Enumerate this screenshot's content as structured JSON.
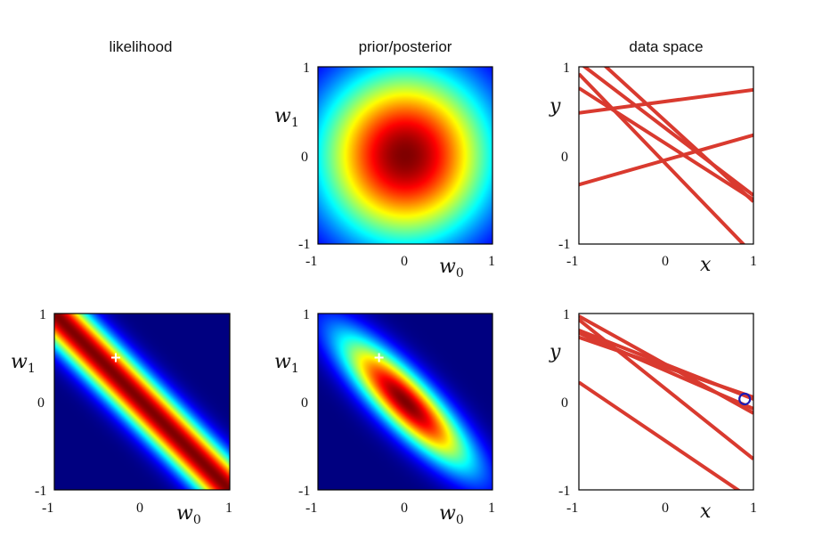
{
  "figure": {
    "col_titles": [
      "likelihood",
      "prior/posterior",
      "data space"
    ]
  },
  "chart_data": [
    {
      "id": "prior",
      "type": "heatmap",
      "title": "prior/posterior",
      "xlabel": "w_0",
      "ylabel": "w_1",
      "xlim": [
        -1,
        1
      ],
      "ylim": [
        -1,
        1
      ],
      "xticks": [
        "-1",
        "0",
        "1"
      ],
      "yticks": [
        "-1",
        "0",
        "1"
      ],
      "density": {
        "kind": "gaussian",
        "mean": [
          0,
          0
        ],
        "cov": [
          [
            0.5,
            0
          ],
          [
            0,
            0.5
          ]
        ]
      },
      "colormap": "jet"
    },
    {
      "id": "data1",
      "type": "line",
      "title": "data space",
      "xlabel": "x",
      "ylabel": "y",
      "xlim": [
        -1,
        1
      ],
      "ylim": [
        -1,
        1
      ],
      "xticks": [
        "-1",
        "0",
        "1"
      ],
      "yticks": [
        "-1",
        "0",
        "1"
      ],
      "line_color": "#d93a2f",
      "lines": [
        {
          "w0": 0.3,
          "w1": -0.75
        },
        {
          "w0": 0.61,
          "w1": 0.13
        },
        {
          "w0": -0.1,
          "w1": -1.02
        },
        {
          "w0": 0.38,
          "w1": -0.9
        },
        {
          "w0": -0.05,
          "w1": 0.28
        },
        {
          "w0": 0.13,
          "w1": -0.63
        }
      ]
    },
    {
      "id": "likelihood",
      "type": "heatmap",
      "title": "likelihood",
      "xlabel": "w_0",
      "ylabel": "w_1",
      "xlim": [
        -1,
        1
      ],
      "ylim": [
        -1,
        1
      ],
      "xticks": [
        "-1",
        "0",
        "1"
      ],
      "yticks": [
        "-1",
        "0",
        "1"
      ],
      "density": {
        "kind": "ridge",
        "line": "w0 + w1 = 0",
        "sigma": 0.18
      },
      "true_w": [
        -0.3,
        0.5
      ],
      "colormap": "jet"
    },
    {
      "id": "posterior",
      "type": "heatmap",
      "title": "prior/posterior",
      "xlabel": "w_0",
      "ylabel": "w_1",
      "xlim": [
        -1,
        1
      ],
      "ylim": [
        -1,
        1
      ],
      "xticks": [
        "-1",
        "0",
        "1"
      ],
      "yticks": [
        "-1",
        "0",
        "1"
      ],
      "density": {
        "kind": "gaussian",
        "mean": [
          0,
          0
        ],
        "cov": [
          [
            0.27,
            -0.23
          ],
          [
            -0.23,
            0.27
          ]
        ]
      },
      "true_w": [
        -0.3,
        0.5
      ],
      "colormap": "jet"
    },
    {
      "id": "data2",
      "type": "line",
      "title": "data space",
      "xlabel": "x",
      "ylabel": "y",
      "xlim": [
        -1,
        1
      ],
      "ylim": [
        -1,
        1
      ],
      "xticks": [
        "-1",
        "0",
        "1"
      ],
      "yticks": [
        "-1",
        "0",
        "1"
      ],
      "line_color": "#d93a2f",
      "lines": [
        {
          "w0": 0.42,
          "w1": -0.55
        },
        {
          "w0": 0.42,
          "w1": -0.39
        },
        {
          "w0": 0.35,
          "w1": -0.43
        },
        {
          "w0": 0.39,
          "w1": -0.34
        },
        {
          "w0": 0.14,
          "w1": -0.79
        },
        {
          "w0": -0.45,
          "w1": -0.67
        }
      ],
      "observed_point": {
        "x": 0.9,
        "y": 0.03,
        "color": "#1c1cb4"
      }
    }
  ]
}
